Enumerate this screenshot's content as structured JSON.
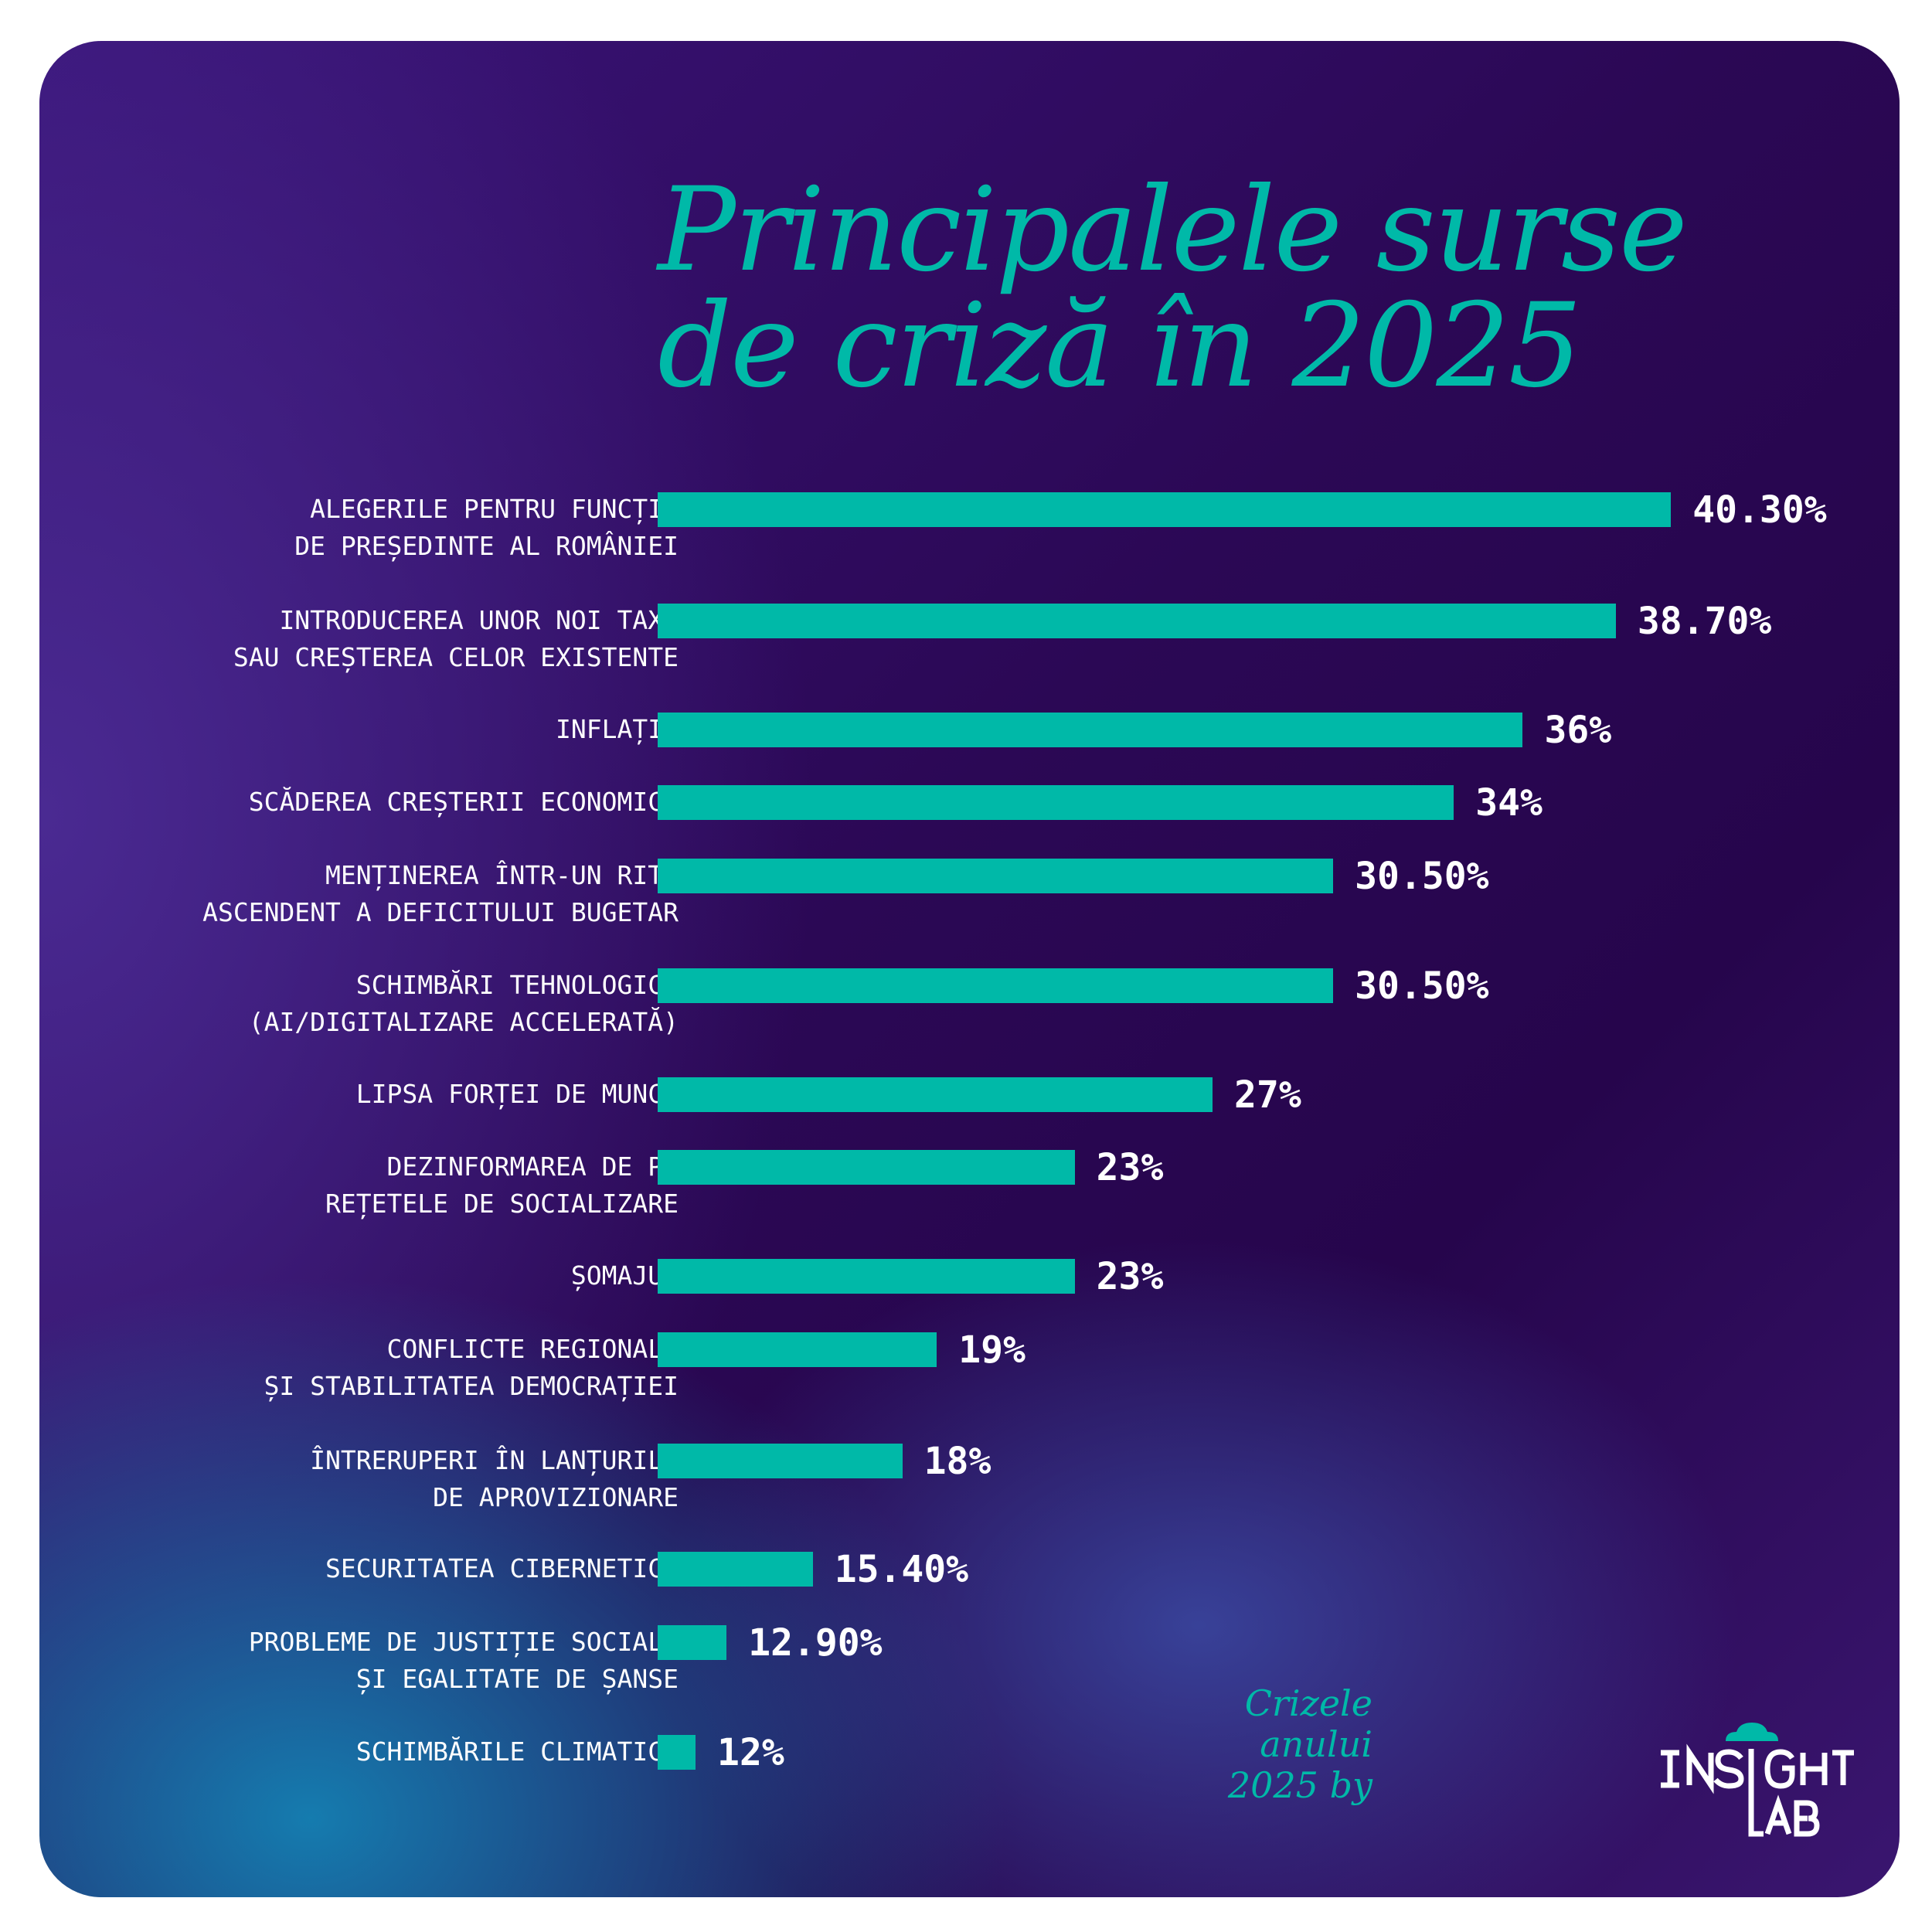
{
  "title": {
    "line1": "Principalele surse",
    "line2": "de criză în 2025"
  },
  "colors": {
    "bar": "#00b9a8",
    "title": "#00b9a8",
    "background": "#2b0855",
    "text": "#ffffff"
  },
  "chart_data": {
    "type": "bar",
    "orientation": "horizontal",
    "title": "Principalele surse de criză în 2025",
    "xlim": [
      10.9,
      42
    ],
    "grid": false,
    "categories": [
      [
        "ALEGERILE PENTRU FUNCȚIA",
        "DE PREȘEDINTE AL ROMÂNIEI"
      ],
      [
        "INTRODUCEREA UNOR NOI TAXE",
        "SAU CREȘTEREA CELOR EXISTENTE"
      ],
      [
        "INFLAȚIA"
      ],
      [
        "SCĂDEREA CREȘTERII ECONOMICE"
      ],
      [
        "MENȚINEREA ÎNTR-UN RITM",
        "ASCENDENT A DEFICITULUI BUGETAR"
      ],
      [
        "SCHIMBĂRI TEHNOLOGICE",
        "(AI/DIGITALIZARE ACCELERATĂ)"
      ],
      [
        "LIPSA FORȚEI DE MUNCĂ"
      ],
      [
        "DEZINFORMAREA DE PE",
        "REȚETELE DE SOCIALIZARE"
      ],
      [
        "ȘOMAJUL"
      ],
      [
        "CONFLICTE REGIONALE",
        "ȘI STABILITATEA DEMOCRAȚIEI"
      ],
      [
        "ÎNTRERUPERI ÎN LANȚURILE",
        "DE APROVIZIONARE"
      ],
      [
        "SECURITATEA CIBERNETICĂ"
      ],
      [
        "PROBLEME DE JUSTIȚIE SOCIALĂ",
        "ȘI EGALITATE DE ȘANSE"
      ],
      [
        "SCHIMBĂRILE CLIMATICE"
      ]
    ],
    "values": [
      40.3,
      38.7,
      36,
      34,
      30.5,
      30.5,
      27,
      23,
      23,
      19,
      18,
      15.4,
      12.9,
      12
    ],
    "data_labels": [
      "40.30%",
      "38.70%",
      "36%",
      "34%",
      "30.50%",
      "30.50%",
      "27%",
      "23%",
      "23%",
      "19%",
      "18%",
      "15.40%",
      "12.90%",
      "12%"
    ]
  },
  "brand": {
    "line1": "Crizele",
    "line2": "anului",
    "line3": "2025 by",
    "logo": "INSIGHT LAB",
    "logo_icon": "cloud-icon"
  }
}
